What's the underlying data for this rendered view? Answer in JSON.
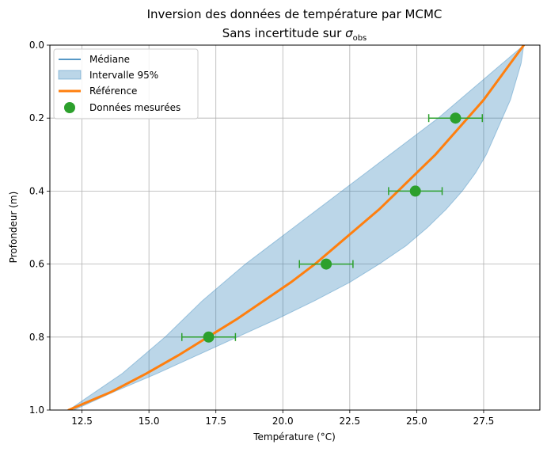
{
  "chart_data": {
    "type": "line",
    "title_line1": "Inversion des données de température par MCMC",
    "title_line2_prefix": "Sans incertitude sur ",
    "title_line2_sigma": "σ",
    "title_line2_sub": "obs",
    "xlabel": "Température (°C)",
    "ylabel": "Profondeur (m)",
    "xlim": [
      11.3,
      29.6
    ],
    "ylim": [
      1.0,
      0.0
    ],
    "y_inverted": true,
    "grid": true,
    "legend_position": "top-left",
    "xticks": [
      12.5,
      15.0,
      17.5,
      20.0,
      22.5,
      25.0,
      27.5
    ],
    "xtick_labels": [
      "12.5",
      "15.0",
      "17.5",
      "20.0",
      "22.5",
      "25.0",
      "27.5"
    ],
    "yticks": [
      0.0,
      0.2,
      0.4,
      0.6,
      0.8,
      1.0
    ],
    "ytick_labels": [
      "0.0",
      "0.2",
      "0.4",
      "0.6",
      "0.8",
      "1.0"
    ],
    "legend": [
      {
        "label": "Médiane",
        "kind": "line",
        "color": "#1f77b4"
      },
      {
        "label": "Intervalle 95%",
        "kind": "band",
        "color": "#1f77b4"
      },
      {
        "label": "Référence",
        "kind": "thickline",
        "color": "#ff7f0e"
      },
      {
        "label": "Données mesurées",
        "kind": "marker",
        "color": "#2ca02c"
      }
    ],
    "series": [
      {
        "kind": "reference",
        "color": "#ff7f0e",
        "depth": [
          0.0,
          0.05,
          0.1,
          0.15,
          0.2,
          0.25,
          0.3,
          0.35,
          0.4,
          0.45,
          0.5,
          0.55,
          0.6,
          0.65,
          0.7,
          0.75,
          0.8,
          0.85,
          0.9,
          0.95,
          1.0
        ],
        "temperature": [
          29.0,
          28.5,
          28.0,
          27.5,
          26.9,
          26.3,
          25.7,
          25.0,
          24.3,
          23.6,
          22.8,
          22.0,
          21.2,
          20.3,
          19.3,
          18.3,
          17.2,
          16.1,
          14.9,
          13.6,
          12.0
        ]
      },
      {
        "kind": "median",
        "color": "#1f77b4",
        "depth": [
          0.0,
          0.05,
          0.1,
          0.15,
          0.2,
          0.25,
          0.3,
          0.35,
          0.4,
          0.45,
          0.5,
          0.55,
          0.6,
          0.65,
          0.7,
          0.75,
          0.8,
          0.85,
          0.9,
          0.95,
          1.0
        ],
        "temperature": [
          29.0,
          28.5,
          28.0,
          27.5,
          26.9,
          26.3,
          25.7,
          25.0,
          24.3,
          23.6,
          22.8,
          22.0,
          21.2,
          20.3,
          19.3,
          18.3,
          17.2,
          16.1,
          14.9,
          13.6,
          12.0
        ]
      },
      {
        "kind": "interval95",
        "color": "#1f77b4",
        "depth": [
          0.0,
          0.05,
          0.1,
          0.15,
          0.2,
          0.25,
          0.3,
          0.35,
          0.4,
          0.45,
          0.5,
          0.55,
          0.6,
          0.65,
          0.7,
          0.75,
          0.8,
          0.85,
          0.9,
          0.95,
          1.0
        ],
        "lower": [
          29.0,
          28.2,
          27.4,
          26.6,
          25.8,
          24.9,
          24.0,
          23.1,
          22.2,
          21.3,
          20.4,
          19.5,
          18.6,
          17.8,
          17.0,
          16.3,
          15.6,
          14.8,
          14.0,
          13.0,
          12.0
        ],
        "upper": [
          29.0,
          28.9,
          28.7,
          28.5,
          28.2,
          27.9,
          27.6,
          27.2,
          26.7,
          26.1,
          25.4,
          24.6,
          23.6,
          22.5,
          21.2,
          19.8,
          18.3,
          16.8,
          15.3,
          13.7,
          12.2
        ]
      }
    ],
    "measurements": [
      {
        "depth": 0.2,
        "temperature": 26.45,
        "xerr": 1.0
      },
      {
        "depth": 0.4,
        "temperature": 24.95,
        "xerr": 1.0
      },
      {
        "depth": 0.6,
        "temperature": 21.62,
        "xerr": 1.0
      },
      {
        "depth": 0.8,
        "temperature": 17.23,
        "xerr": 1.0
      }
    ]
  }
}
